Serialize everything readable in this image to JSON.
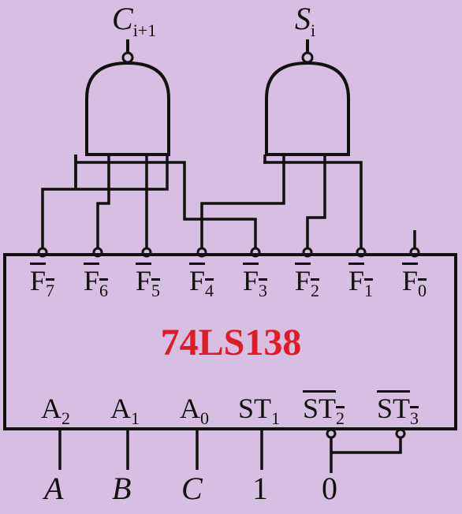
{
  "outputs": {
    "carry": {
      "base": "C",
      "sub": "i+1"
    },
    "sum": {
      "base": "S",
      "sub": "i"
    }
  },
  "chip": {
    "name": "74LS138"
  },
  "pins_top": [
    {
      "base": "F",
      "sub": "7"
    },
    {
      "base": "F",
      "sub": "6"
    },
    {
      "base": "F",
      "sub": "5"
    },
    {
      "base": "F",
      "sub": "4"
    },
    {
      "base": "F",
      "sub": "3"
    },
    {
      "base": "F",
      "sub": "2"
    },
    {
      "base": "F",
      "sub": "1"
    },
    {
      "base": "F",
      "sub": "0"
    }
  ],
  "pins_bottom": [
    {
      "base": "A",
      "sub": "2"
    },
    {
      "base": "A",
      "sub": "1"
    },
    {
      "base": "A",
      "sub": "0"
    },
    {
      "base": "ST",
      "sub": "1"
    },
    {
      "base": "ST",
      "sub": "2"
    },
    {
      "base": "ST",
      "sub": "3"
    }
  ],
  "inputs": [
    "A",
    "B",
    "C",
    "1",
    "0"
  ],
  "colors": {
    "background": "#d6bfe3",
    "chip_label": "#e01b24",
    "line": "#111111"
  }
}
